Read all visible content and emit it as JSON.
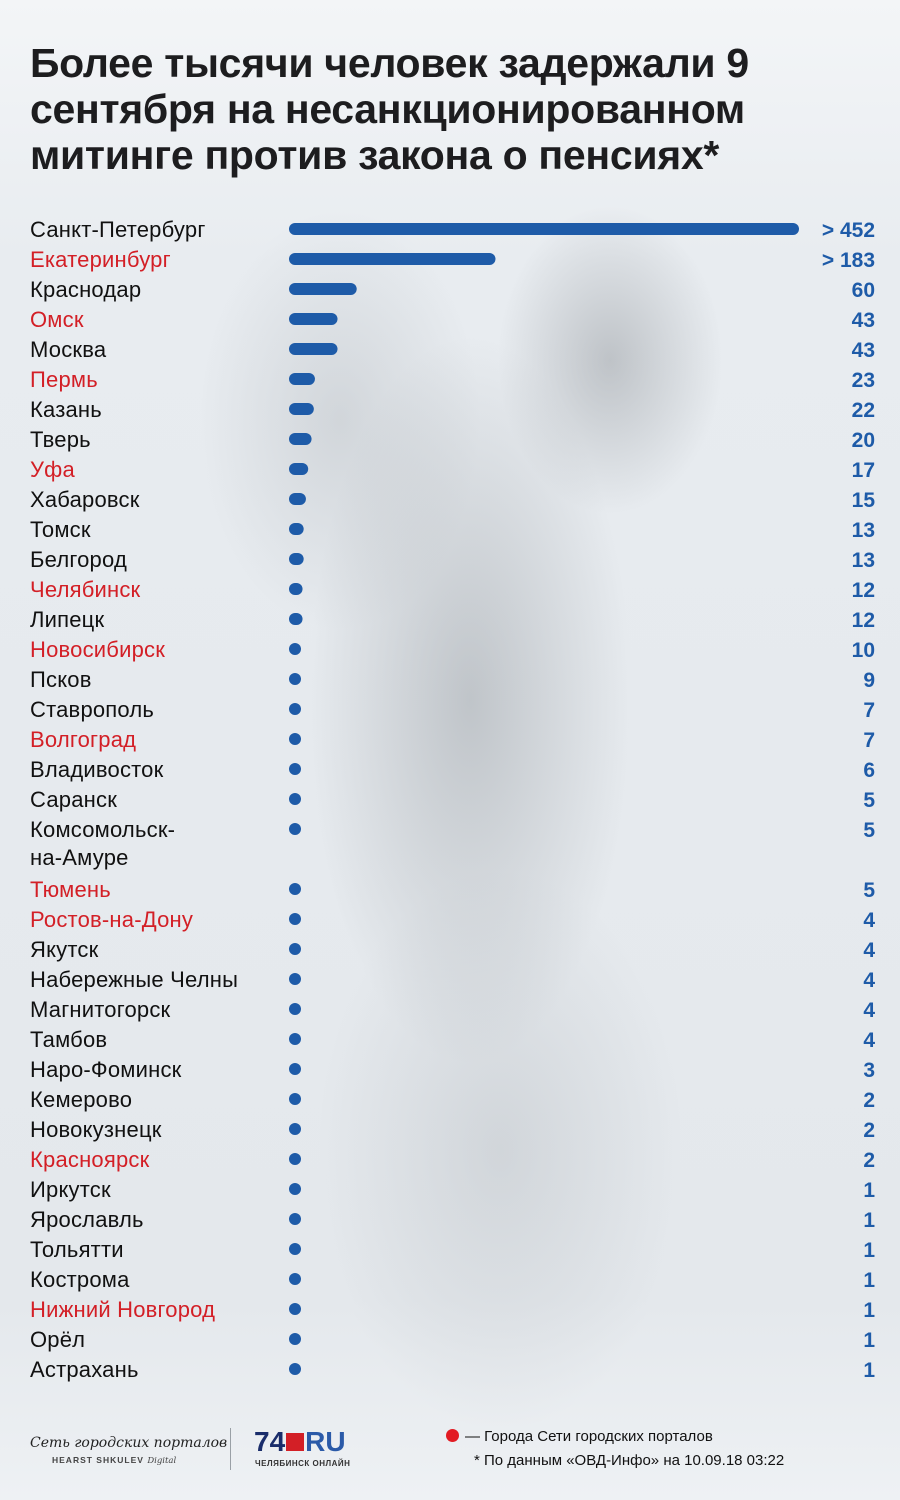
{
  "title": "Более тысячи человек задержали 9 сентября на несанкционированном митинге против закона о пенсиях*",
  "colors": {
    "bar": "#1e5ba8",
    "network_city": "#d31f26",
    "legend_dot": "#e21b23"
  },
  "chart_data": {
    "type": "bar",
    "orientation": "horizontal",
    "title": "Более тысячи человек задержали 9 сентября на несанкционированном митинге против закона о пенсиях*",
    "xlabel": "",
    "ylabel": "",
    "grid": false,
    "categories": [
      "Санкт-Петербург",
      "Екатеринбург",
      "Краснодар",
      "Омск",
      "Москва",
      "Пермь",
      "Казань",
      "Тверь",
      "Уфа",
      "Хабаровск",
      "Томск",
      "Белгород",
      "Челябинск",
      "Липецк",
      "Новосибирск",
      "Псков",
      "Ставрополь",
      "Волгоград",
      "Владивосток",
      "Саранск",
      "Комсомольск-на-Амуре",
      "Тюмень",
      "Ростов-на-Дону",
      "Якутск",
      "Набережные Челны",
      "Магнитогорск",
      "Тамбов",
      "Наро-Фоминск",
      "Кемерово",
      "Новокузнецк",
      "Красноярск",
      "Иркутск",
      "Ярославль",
      "Тольятти",
      "Кострома",
      "Нижний Новгород",
      "Орёл",
      "Астрахань"
    ],
    "display_labels": [
      "Санкт-Петербург",
      "Екатеринбург",
      "Краснодар",
      "Омск",
      "Москва",
      "Пермь",
      "Казань",
      "Тверь",
      "Уфа",
      "Хабаровск",
      "Томск",
      "Белгород",
      "Челябинск",
      "Липецк",
      "Новосибирск",
      "Псков",
      "Ставрополь",
      "Волгоград",
      "Владивосток",
      "Саранск",
      [
        "Комсомольск-",
        "на-Амуре"
      ],
      "Тюмень",
      "Ростов-на-Дону",
      "Якутск",
      "Набережные Челны",
      "Магнитогорск",
      "Тамбов",
      "Наро-Фоминск",
      "Кемерово",
      "Новокузнецк",
      "Красноярск",
      "Иркутск",
      "Ярославль",
      "Тольятти",
      "Кострома",
      "Нижний Новгород",
      "Орёл",
      "Астрахань"
    ],
    "values": [
      452,
      183,
      60,
      43,
      43,
      23,
      22,
      20,
      17,
      15,
      13,
      13,
      12,
      12,
      10,
      9,
      7,
      7,
      6,
      5,
      5,
      5,
      4,
      4,
      4,
      4,
      4,
      3,
      2,
      2,
      2,
      1,
      1,
      1,
      1,
      1,
      1,
      1
    ],
    "value_labels": [
      "> 452",
      "> 183",
      "60",
      "43",
      "43",
      "23",
      "22",
      "20",
      "17",
      "15",
      "13",
      "13",
      "12",
      "12",
      "10",
      "9",
      "7",
      "7",
      "6",
      "5",
      "5",
      "5",
      "4",
      "4",
      "4",
      "4",
      "4",
      "3",
      "2",
      "2",
      "2",
      "1",
      "1",
      "1",
      "1",
      "1",
      "1",
      "1"
    ],
    "network_city": [
      false,
      true,
      false,
      true,
      false,
      true,
      false,
      false,
      true,
      false,
      false,
      false,
      true,
      false,
      true,
      false,
      false,
      true,
      false,
      false,
      false,
      true,
      true,
      false,
      false,
      false,
      false,
      false,
      false,
      false,
      true,
      false,
      false,
      false,
      false,
      true,
      false,
      false
    ]
  },
  "footer": {
    "logo_network": "Сеть городских порталов",
    "logo_network_sub": "HEARST SHKULEV",
    "logo_network_sub2": "Digital",
    "logo_74_num": "74",
    "logo_74_ru": "RU",
    "logo_74_sub": "ЧЕЛЯБИНСК ОНЛАЙН",
    "legend_text": "— Города Сети городских порталов",
    "source_text": "* По данным «ОВД-Инфо» на 10.09.18 03:22"
  }
}
